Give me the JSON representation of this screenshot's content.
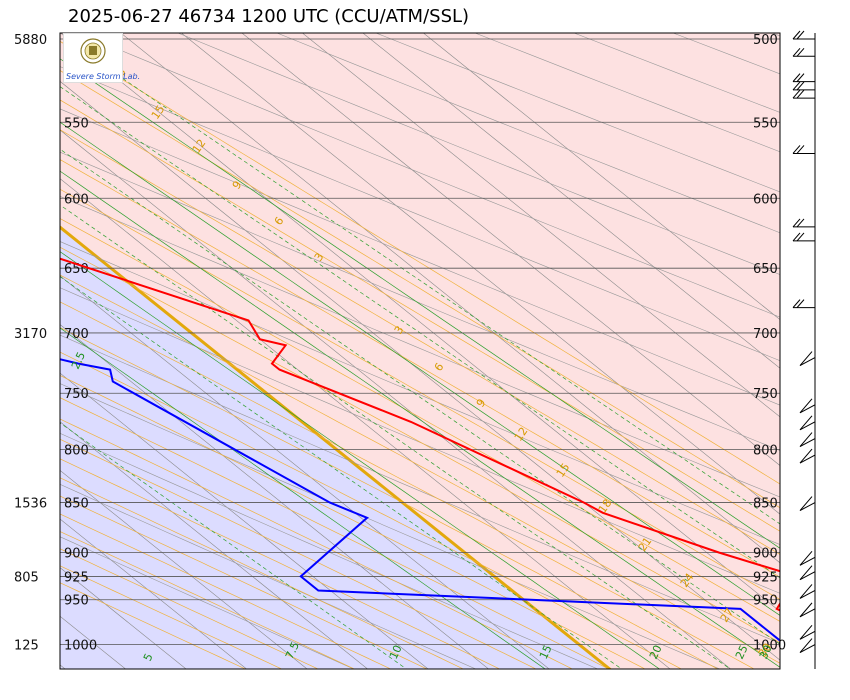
{
  "title": "2025-06-27 46734 1200 UTC (CCU/ATM/SSL)",
  "logo_text": "Severe Storm Lab.",
  "colors": {
    "cold_region": "#dcdcff",
    "warm_region": "#fde1e1",
    "temperature": "#ff0000",
    "dewpoint": "#0000ff",
    "isotherm_zero": "#e3a80c",
    "moist_adiabat": "#f0b23c",
    "mixing_ratio": "#2ea02e"
  },
  "chart_data": {
    "type": "line",
    "title": "2025-06-27 46734 1200 UTC (CCU/ATM/SSL)",
    "xlabel": "",
    "ylabel": "",
    "pressure_range_hPa": [
      500,
      1020
    ],
    "pressure_scale": "log",
    "pressure_ticks": [
      500,
      550,
      600,
      650,
      700,
      750,
      800,
      850,
      900,
      925,
      950,
      1000
    ],
    "height_labels": [
      {
        "p": 500,
        "text": "5880"
      },
      {
        "p": 700,
        "text": "3170"
      },
      {
        "p": 850,
        "text": "1536"
      },
      {
        "p": 925,
        "text": "805"
      },
      {
        "p": 1000,
        "text": "125"
      }
    ],
    "moist_adiabat_labels": [
      "3",
      "6",
      "9",
      "12",
      "15",
      "18",
      "21",
      "24",
      "27",
      "30",
      "18",
      "15",
      "12",
      "9",
      "6",
      "3"
    ],
    "mixing_ratio_labels": [
      "2.5",
      "5",
      "7.5",
      "10",
      "15",
      "20",
      "25",
      "30"
    ],
    "series": [
      {
        "key": "temperature",
        "points": [
          {
            "p": 1008,
            "t": 23.5
          },
          {
            "p": 1000,
            "t": 24.5
          },
          {
            "p": 980,
            "t": 21.5
          },
          {
            "p": 960,
            "t": 20.0
          },
          {
            "p": 925,
            "t": 25.0
          },
          {
            "p": 900,
            "t": 21.0
          },
          {
            "p": 860,
            "t": 15.5
          },
          {
            "p": 850,
            "t": 15.0
          },
          {
            "p": 775,
            "t": 9.0
          },
          {
            "p": 730,
            "t": 3.5
          },
          {
            "p": 725,
            "t": 3.5
          },
          {
            "p": 710,
            "t": 6.5
          },
          {
            "p": 705,
            "t": 5.0
          },
          {
            "p": 690,
            "t": 6.0
          },
          {
            "p": 620,
            "t": -8.0
          },
          {
            "p": 600,
            "t": -11.0
          },
          {
            "p": 540,
            "t": -20.5
          },
          {
            "p": 505,
            "t": -25.5
          },
          {
            "p": 500,
            "t": -25.0
          },
          {
            "p": 490,
            "t": -22.0
          }
        ]
      },
      {
        "key": "dewpoint",
        "points": [
          {
            "p": 1008,
            "t": 18.0
          },
          {
            "p": 1000,
            "t": 17.0
          },
          {
            "p": 960,
            "t": 17.0
          },
          {
            "p": 940,
            "t": -16.0
          },
          {
            "p": 925,
            "t": -16.0
          },
          {
            "p": 865,
            "t": -4.5
          },
          {
            "p": 850,
            "t": -6.0
          },
          {
            "p": 740,
            "t": -11.5
          },
          {
            "p": 730,
            "t": -10.5
          },
          {
            "p": 725,
            "t": -12.5
          },
          {
            "p": 715,
            "t": -15.5
          },
          {
            "p": 700,
            "t": -15.5
          },
          {
            "p": 690,
            "t": -27.0
          },
          {
            "p": 620,
            "t": -9.0
          },
          {
            "p": 600,
            "t": -11.5
          },
          {
            "p": 540,
            "t": -21.0
          },
          {
            "p": 505,
            "t": -26.0
          },
          {
            "p": 495,
            "t": -38.0
          },
          {
            "p": 490,
            "t": -33.0
          }
        ]
      }
    ],
    "wind_barbs": [
      {
        "p": 500
      },
      {
        "p": 510
      },
      {
        "p": 525
      },
      {
        "p": 530
      },
      {
        "p": 535
      },
      {
        "p": 570
      },
      {
        "p": 620
      },
      {
        "p": 630
      },
      {
        "p": 680
      },
      {
        "p": 720
      },
      {
        "p": 760
      },
      {
        "p": 775
      },
      {
        "p": 790
      },
      {
        "p": 805
      },
      {
        "p": 850
      },
      {
        "p": 905
      },
      {
        "p": 920
      },
      {
        "p": 940
      },
      {
        "p": 960
      },
      {
        "p": 985
      },
      {
        "p": 1000
      }
    ]
  }
}
